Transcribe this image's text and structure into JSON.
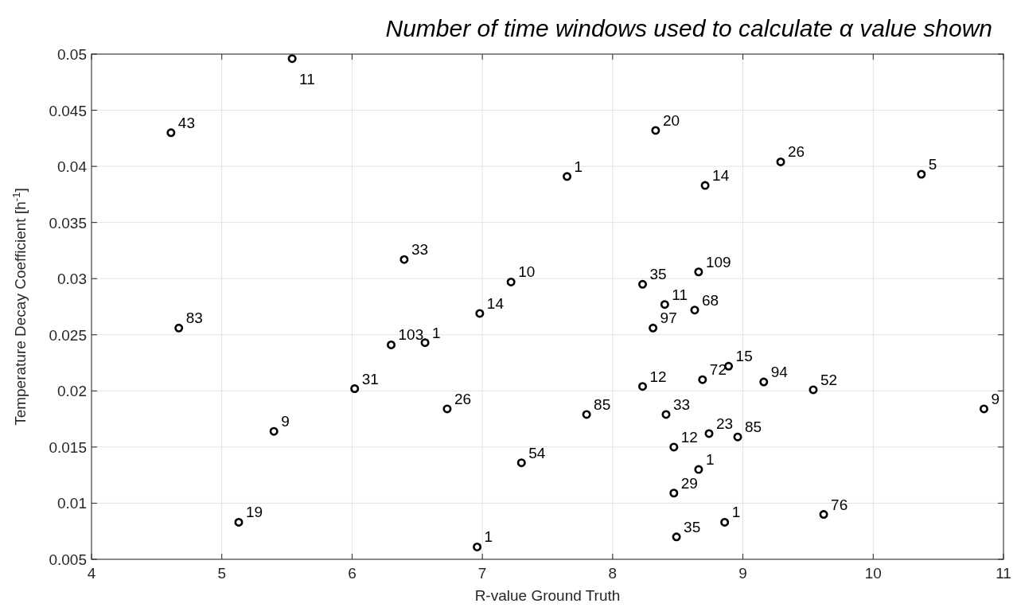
{
  "chart_data": {
    "type": "scatter",
    "title": "Number of time windows used to calculate α value shown",
    "xlabel": "R-value Ground Truth",
    "ylabel": "Temperature Decay Coefficient [h$^{-1}$]",
    "x": [
      5.54,
      4.61,
      4.67,
      5.4,
      5.13,
      8.33,
      7.65,
      6.4,
      7.22,
      6.98,
      6.3,
      6.56,
      6.02,
      6.73,
      7.8,
      7.3,
      6.96,
      8.23,
      8.4,
      8.31,
      8.23,
      8.41,
      8.47,
      8.47,
      8.49,
      9.29,
      10.37,
      8.71,
      8.66,
      8.63,
      8.89,
      8.69,
      9.16,
      9.54,
      10.85,
      8.74,
      8.96,
      8.66,
      9.62,
      8.86
    ],
    "series": [
      {
        "color": "#000000",
        "values": [
          0.0496,
          0.043,
          0.0256,
          0.0164,
          0.0083,
          0.0432,
          0.0391,
          0.0317,
          0.0297,
          0.0269,
          0.0241,
          0.0243,
          0.0202,
          0.0184,
          0.0179,
          0.0136,
          0.0061,
          0.0295,
          0.0277,
          0.0256,
          0.0204,
          0.0179,
          0.015,
          0.0109,
          0.007,
          0.0404,
          0.0393,
          0.0383,
          0.0306,
          0.0272,
          0.0222,
          0.021,
          0.0208,
          0.0201,
          0.0184,
          0.0162,
          0.0159,
          0.013,
          0.009,
          0.0083
        ]
      }
    ],
    "annotations": [
      {
        "text": "11",
        "x": 5.54,
        "y": 0.0496
      },
      {
        "text": "43",
        "x": 4.61,
        "y": 0.043
      },
      {
        "text": "83",
        "x": 4.67,
        "y": 0.0256
      },
      {
        "text": "9",
        "x": 5.4,
        "y": 0.0164
      },
      {
        "text": "19",
        "x": 5.13,
        "y": 0.0083
      },
      {
        "text": "20",
        "x": 8.33,
        "y": 0.0432
      },
      {
        "text": "1",
        "x": 7.65,
        "y": 0.0391
      },
      {
        "text": "33",
        "x": 6.4,
        "y": 0.0317
      },
      {
        "text": "10",
        "x": 7.22,
        "y": 0.0297
      },
      {
        "text": "14",
        "x": 6.98,
        "y": 0.0269
      },
      {
        "text": "103",
        "x": 6.3,
        "y": 0.0241
      },
      {
        "text": "1",
        "x": 6.56,
        "y": 0.0243
      },
      {
        "text": "31",
        "x": 6.02,
        "y": 0.0202
      },
      {
        "text": "26",
        "x": 6.73,
        "y": 0.0184
      },
      {
        "text": "85",
        "x": 7.8,
        "y": 0.0179
      },
      {
        "text": "54",
        "x": 7.3,
        "y": 0.0136
      },
      {
        "text": "1",
        "x": 6.96,
        "y": 0.0061
      },
      {
        "text": "35",
        "x": 8.23,
        "y": 0.0295
      },
      {
        "text": "11",
        "x": 8.4,
        "y": 0.0277
      },
      {
        "text": "97",
        "x": 8.31,
        "y": 0.0256
      },
      {
        "text": "12",
        "x": 8.23,
        "y": 0.0204
      },
      {
        "text": "33",
        "x": 8.41,
        "y": 0.0179
      },
      {
        "text": "12",
        "x": 8.47,
        "y": 0.015
      },
      {
        "text": "29",
        "x": 8.47,
        "y": 0.0109
      },
      {
        "text": "35",
        "x": 8.49,
        "y": 0.007
      },
      {
        "text": "26",
        "x": 9.29,
        "y": 0.0404
      },
      {
        "text": "5",
        "x": 10.37,
        "y": 0.0393
      },
      {
        "text": "14",
        "x": 8.71,
        "y": 0.0383
      },
      {
        "text": "109",
        "x": 8.66,
        "y": 0.0306
      },
      {
        "text": "68",
        "x": 8.63,
        "y": 0.0272
      },
      {
        "text": "15",
        "x": 8.89,
        "y": 0.0222
      },
      {
        "text": "72",
        "x": 8.69,
        "y": 0.021
      },
      {
        "text": "94",
        "x": 9.16,
        "y": 0.0208
      },
      {
        "text": "52",
        "x": 9.54,
        "y": 0.0201
      },
      {
        "text": "9",
        "x": 10.85,
        "y": 0.0184
      },
      {
        "text": "23",
        "x": 8.74,
        "y": 0.0162
      },
      {
        "text": "85",
        "x": 8.96,
        "y": 0.0159
      },
      {
        "text": "1",
        "x": 8.66,
        "y": 0.013
      },
      {
        "text": "76",
        "x": 9.62,
        "y": 0.009
      },
      {
        "text": "1",
        "x": 8.86,
        "y": 0.0083
      }
    ],
    "xlim": [
      4,
      11
    ],
    "xticks": [
      4,
      5,
      6,
      7,
      8,
      9,
      10,
      11
    ],
    "ylim": [
      0.005,
      0.05
    ],
    "yticks": [
      0.005,
      0.01,
      0.015,
      0.02,
      0.025,
      0.03,
      0.035,
      0.04,
      0.045,
      0.05
    ],
    "grid": true,
    "marker": "circle"
  }
}
